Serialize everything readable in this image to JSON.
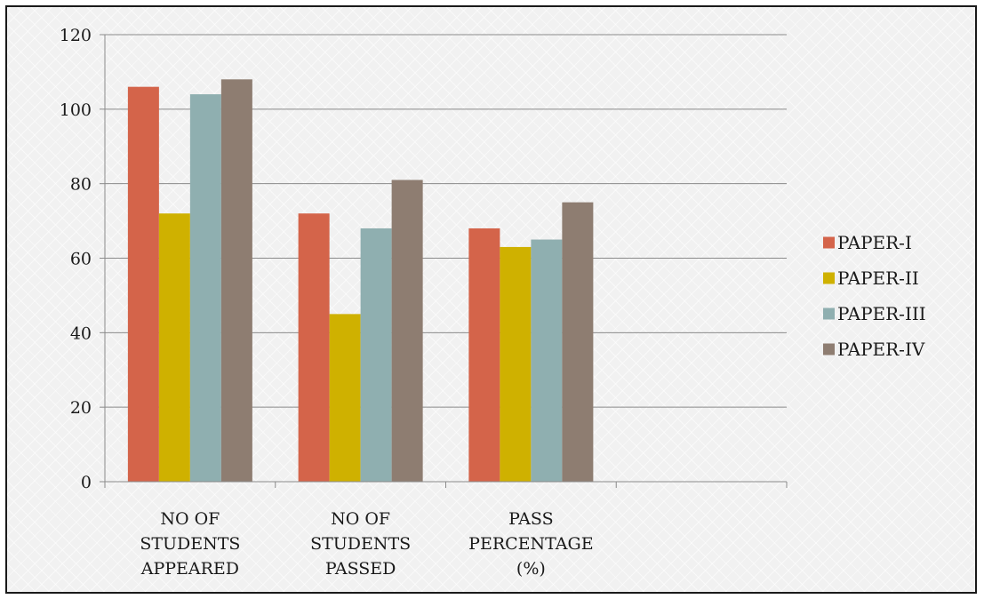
{
  "chart_data": {
    "type": "bar",
    "title": "",
    "xlabel": "",
    "ylabel": "",
    "ylim": [
      0,
      120
    ],
    "yticks": [
      0,
      20,
      40,
      60,
      80,
      100,
      120
    ],
    "grid": true,
    "legend": "right",
    "categories": [
      [
        "NO OF",
        "STUDENTS",
        "APPEARED"
      ],
      [
        "NO OF",
        "STUDENTS",
        "PASSED"
      ],
      [
        "PASS",
        "PERCENTAGE",
        "(%)"
      ],
      []
    ],
    "series": [
      {
        "name": "PAPER-I",
        "color": "#d4644a",
        "values": [
          106,
          72,
          68,
          null
        ]
      },
      {
        "name": "PAPER-II",
        "color": "#cfb100",
        "values": [
          72,
          45,
          63,
          null
        ]
      },
      {
        "name": "PAPER-III",
        "color": "#8fafb0",
        "values": [
          104,
          68,
          65,
          null
        ]
      },
      {
        "name": "PAPER-IV",
        "color": "#8e7d71",
        "values": [
          108,
          81,
          75,
          null
        ]
      }
    ]
  }
}
